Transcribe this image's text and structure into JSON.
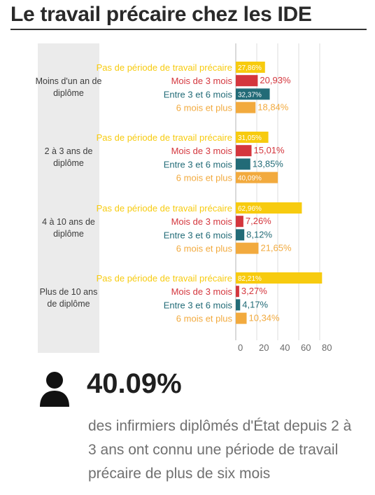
{
  "title": "Le travail précaire chez les IDE",
  "chart_data": {
    "type": "bar",
    "orientation": "horizontal",
    "title": "Le travail précaire chez les IDE",
    "categories": [
      "Moins d'un an de diplôme",
      "2 à 3 ans de diplôme",
      "4 à 10 ans de diplôme",
      "Plus de 10 ans de diplôme"
    ],
    "series": [
      {
        "name": "Pas de période de travail précaire",
        "color": "#f7cb0f",
        "values": [
          27.86,
          31.05,
          62.96,
          82.21
        ],
        "labels": [
          "27,86%",
          "31,05%",
          "62,96%",
          "82,21%"
        ]
      },
      {
        "name": "Mois de 3 mois",
        "color": "#d4363d",
        "values": [
          20.93,
          15.01,
          7.26,
          3.27
        ],
        "labels": [
          "20,93%",
          "15,01%",
          "7,26%",
          "3,27%"
        ]
      },
      {
        "name": "Entre 3 et 6 mois",
        "color": "#226b77",
        "values": [
          32.37,
          13.85,
          8.12,
          4.17
        ],
        "labels": [
          "32,37%",
          "13,85%",
          "8,12%",
          "4,17%"
        ]
      },
      {
        "name": "6 mois et plus",
        "color": "#f2aa3e",
        "values": [
          18.84,
          40.09,
          21.65,
          10.34
        ],
        "labels": [
          "18,84%",
          "40,09%",
          "21,65%",
          "10,34%"
        ]
      }
    ],
    "xlim": [
      0,
      80
    ],
    "xticks": [
      "0",
      "20",
      "40",
      "60",
      "80"
    ],
    "grid": true,
    "legend": "none"
  },
  "stat": {
    "value": "40.09%",
    "text": "des infirmiers diplômés d'État depuis 2 à 3 ans ont connu une période de travail précaire de plus de six mois",
    "icon": "person-icon"
  }
}
